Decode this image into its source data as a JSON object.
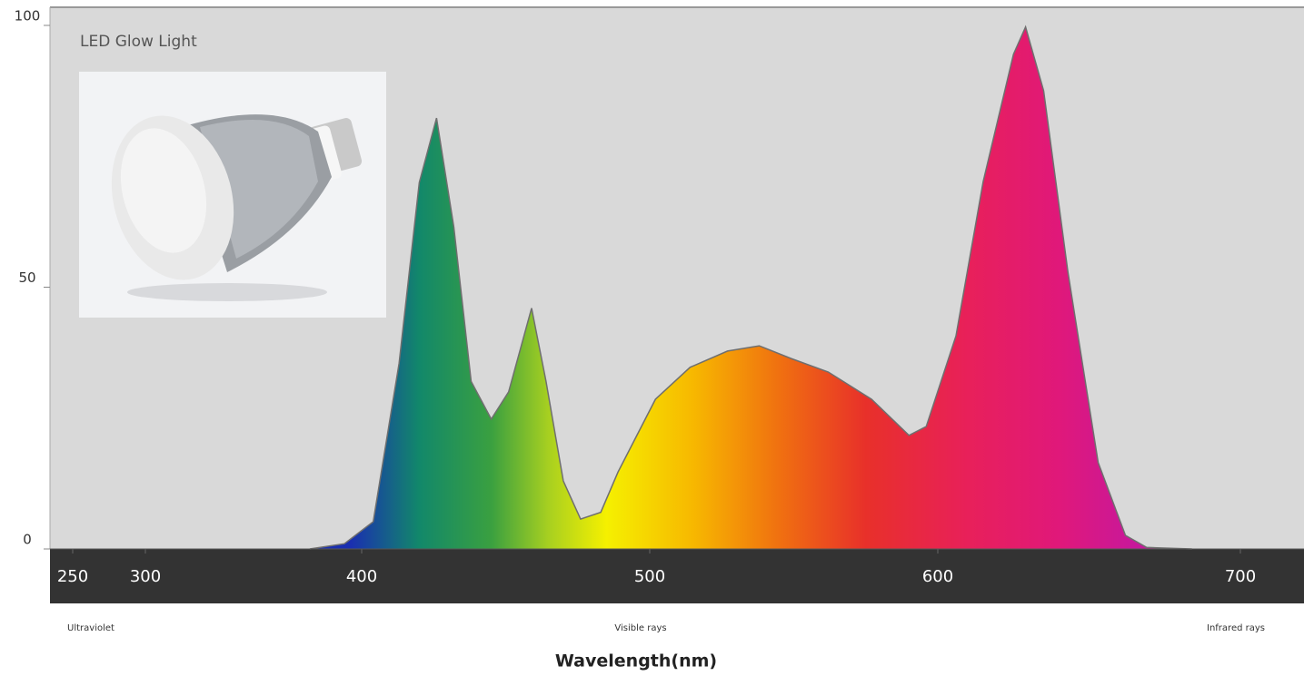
{
  "chart_data": {
    "type": "area",
    "title": "LED Glow Light",
    "x_label": "Wavelength(nm)",
    "region_labels": [
      "Ultraviolet",
      "Visible rays",
      "Infrared rays"
    ],
    "x": [
      376,
      392,
      404,
      413,
      420,
      426,
      432,
      438,
      445,
      451,
      459,
      464,
      470,
      476,
      483,
      489,
      502,
      514,
      527,
      538,
      549,
      562,
      577,
      590,
      596,
      606,
      615,
      625,
      629,
      635,
      643,
      653,
      662,
      669,
      684
    ],
    "values": [
      0,
      1,
      5.2,
      35.5,
      70,
      82.3,
      61.5,
      32,
      24.8,
      30,
      46,
      32,
      13,
      5.7,
      7,
      14.7,
      28.6,
      34.7,
      37.8,
      38.8,
      36.4,
      33.8,
      28.6,
      21.7,
      23.4,
      40.7,
      70.2,
      94.5,
      99.7,
      87.5,
      52.9,
      16.5,
      2.6,
      0.3,
      0
    ],
    "color_stops": [
      {
        "x": 395,
        "color": "#1a2fb0"
      },
      {
        "x": 420,
        "color": "#12886a"
      },
      {
        "x": 445,
        "color": "#3aa040"
      },
      {
        "x": 465,
        "color": "#a8d020"
      },
      {
        "x": 485,
        "color": "#f5f000"
      },
      {
        "x": 515,
        "color": "#f7b800"
      },
      {
        "x": 545,
        "color": "#f07010"
      },
      {
        "x": 575,
        "color": "#e8302a"
      },
      {
        "x": 610,
        "color": "#e8205a"
      },
      {
        "x": 640,
        "color": "#e0187a"
      },
      {
        "x": 665,
        "color": "#c8189a"
      }
    ],
    "ylim": [
      0,
      100
    ],
    "yticks": [
      0,
      50,
      100
    ],
    "xticks": [
      250,
      300,
      400,
      500,
      600,
      700
    ]
  }
}
